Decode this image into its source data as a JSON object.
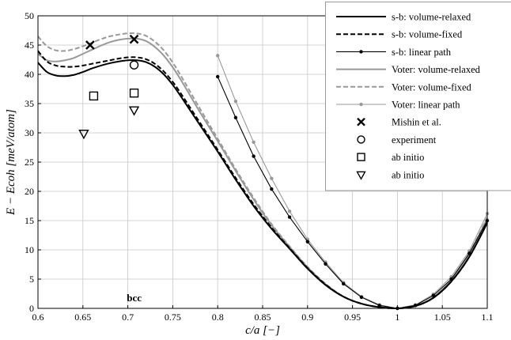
{
  "chart_data": {
    "type": "line",
    "xlabel": "c/a  [−]",
    "ylabel": "E − Ecoh [meV/atom]",
    "xlim": [
      0.6,
      1.1
    ],
    "ylim": [
      0,
      50
    ],
    "xticks": [
      "0.6",
      "0.65",
      "0.7",
      "0.75",
      "0.8",
      "0.85",
      "0.9",
      "0.95",
      "1",
      "1.05",
      "1.1"
    ],
    "yticks": [
      "0",
      "5",
      "10",
      "15",
      "20",
      "25",
      "30",
      "35",
      "40",
      "45",
      "50"
    ],
    "grid": true,
    "legend_position": "top-right",
    "annotation": {
      "text": "bcc",
      "x": 0.7071
    },
    "colors": {
      "black": "#000000",
      "gray": "#999999"
    },
    "series": [
      {
        "name": "s-b: volume-relaxed",
        "style": "solid",
        "color": "#000000",
        "marker": "none",
        "x": [
          0.6,
          0.61,
          0.62,
          0.63,
          0.64,
          0.65,
          0.66,
          0.67,
          0.68,
          0.69,
          0.7,
          0.71,
          0.72,
          0.73,
          0.74,
          0.75,
          0.76,
          0.78,
          0.8,
          0.82,
          0.84,
          0.86,
          0.88,
          0.9,
          0.92,
          0.94,
          0.96,
          0.98,
          1.0,
          1.02,
          1.04,
          1.06,
          1.08,
          1.1
        ],
        "y": [
          42.0,
          40.4,
          39.8,
          39.7,
          39.9,
          40.4,
          41.0,
          41.5,
          41.9,
          42.2,
          42.4,
          42.4,
          42.1,
          41.3,
          40.0,
          38.2,
          36.0,
          31.4,
          26.8,
          22.0,
          17.5,
          13.6,
          10.2,
          6.8,
          4.0,
          2.0,
          0.8,
          0.2,
          0.0,
          0.4,
          1.8,
          4.6,
          8.8,
          14.6
        ]
      },
      {
        "name": "s-b: volume-fixed",
        "style": "dashed",
        "color": "#000000",
        "marker": "none",
        "x": [
          0.6,
          0.61,
          0.62,
          0.63,
          0.64,
          0.65,
          0.66,
          0.67,
          0.68,
          0.69,
          0.7,
          0.71,
          0.72,
          0.73,
          0.74,
          0.75,
          0.76,
          0.78,
          0.8,
          0.82,
          0.84,
          0.86,
          0.88,
          0.9,
          0.92,
          0.94,
          0.96,
          0.98,
          1.0,
          1.02,
          1.04,
          1.06,
          1.08,
          1.1
        ],
        "y": [
          44.0,
          42.2,
          41.5,
          41.3,
          41.3,
          41.5,
          41.8,
          42.1,
          42.4,
          42.7,
          42.9,
          42.9,
          42.6,
          41.8,
          40.5,
          38.7,
          36.5,
          31.8,
          27.1,
          22.3,
          17.8,
          13.8,
          10.3,
          6.9,
          4.1,
          2.0,
          0.8,
          0.2,
          0.0,
          0.4,
          1.8,
          4.6,
          8.8,
          14.7
        ]
      },
      {
        "name": "s-b: linear path",
        "style": "solid",
        "color": "#000000",
        "marker": "dot",
        "x": [
          0.8,
          0.82,
          0.84,
          0.86,
          0.88,
          0.9,
          0.92,
          0.94,
          0.96,
          0.98,
          1.0,
          1.02,
          1.04,
          1.06,
          1.08,
          1.1
        ],
        "y": [
          39.6,
          32.6,
          26.0,
          20.4,
          15.6,
          11.4,
          7.6,
          4.2,
          1.9,
          0.5,
          0.0,
          0.5,
          2.2,
          5.0,
          9.4,
          15.0
        ]
      },
      {
        "name": "Voter: volume-relaxed",
        "style": "solid",
        "color": "#999999",
        "marker": "none",
        "x": [
          0.6,
          0.61,
          0.62,
          0.63,
          0.64,
          0.65,
          0.66,
          0.67,
          0.68,
          0.69,
          0.7,
          0.71,
          0.72,
          0.73,
          0.74,
          0.75,
          0.76,
          0.78,
          0.8,
          0.82,
          0.84,
          0.86,
          0.88,
          0.9,
          0.92,
          0.94,
          0.96,
          0.98,
          1.0,
          1.02,
          1.04,
          1.06,
          1.08,
          1.1
        ],
        "y": [
          43.5,
          42.4,
          42.2,
          42.4,
          42.8,
          43.5,
          44.2,
          44.9,
          45.5,
          45.9,
          46.1,
          46.1,
          45.7,
          44.7,
          43.2,
          41.2,
          38.8,
          33.6,
          28.6,
          23.5,
          18.6,
          14.2,
          10.5,
          7.0,
          4.1,
          2.0,
          0.8,
          0.2,
          0.0,
          0.4,
          1.9,
          4.9,
          9.3,
          15.4
        ]
      },
      {
        "name": "Voter: volume-fixed",
        "style": "dashed",
        "color": "#999999",
        "marker": "none",
        "x": [
          0.6,
          0.61,
          0.62,
          0.63,
          0.64,
          0.65,
          0.66,
          0.67,
          0.68,
          0.69,
          0.7,
          0.71,
          0.72,
          0.73,
          0.74,
          0.75,
          0.76,
          0.78,
          0.8,
          0.82,
          0.84,
          0.86,
          0.88,
          0.9,
          0.92,
          0.94,
          0.96,
          0.98,
          1.0,
          1.02,
          1.04,
          1.06,
          1.08,
          1.1
        ],
        "y": [
          46.5,
          44.8,
          44.1,
          44.0,
          44.3,
          44.8,
          45.4,
          46.0,
          46.5,
          46.8,
          47.0,
          47.0,
          46.6,
          45.6,
          44.1,
          42.0,
          39.5,
          34.2,
          29.0,
          23.8,
          18.9,
          14.4,
          10.6,
          7.1,
          4.2,
          2.0,
          0.8,
          0.2,
          0.0,
          0.4,
          1.9,
          4.9,
          9.4,
          15.6
        ]
      },
      {
        "name": "Voter: linear path",
        "style": "solid",
        "color": "#999999",
        "marker": "dot",
        "x": [
          0.8,
          0.82,
          0.84,
          0.86,
          0.88,
          0.9,
          0.92,
          0.94,
          0.96,
          0.98,
          1.0,
          1.02,
          1.04,
          1.06,
          1.08,
          1.1
        ],
        "y": [
          43.2,
          35.4,
          28.4,
          22.2,
          16.6,
          11.8,
          7.9,
          4.4,
          2.0,
          0.6,
          0.0,
          0.6,
          2.4,
          5.4,
          9.8,
          16.2
        ]
      },
      {
        "name": "Mishin et al.",
        "style": "none",
        "color": "#000000",
        "marker": "x",
        "x": [
          0.658,
          0.707
        ],
        "y": [
          45.0,
          46.0
        ]
      },
      {
        "name": "experiment",
        "style": "none",
        "color": "#000000",
        "marker": "circle",
        "x": [
          0.707
        ],
        "y": [
          41.6
        ]
      },
      {
        "name": "ab initio",
        "style": "none",
        "color": "#000000",
        "marker": "square",
        "x": [
          0.662,
          0.707
        ],
        "y": [
          36.3,
          36.8
        ]
      },
      {
        "name": "ab initio",
        "style": "none",
        "color": "#000000",
        "marker": "triangle-down",
        "x": [
          0.651,
          0.707
        ],
        "y": [
          29.9,
          33.9
        ]
      }
    ]
  }
}
